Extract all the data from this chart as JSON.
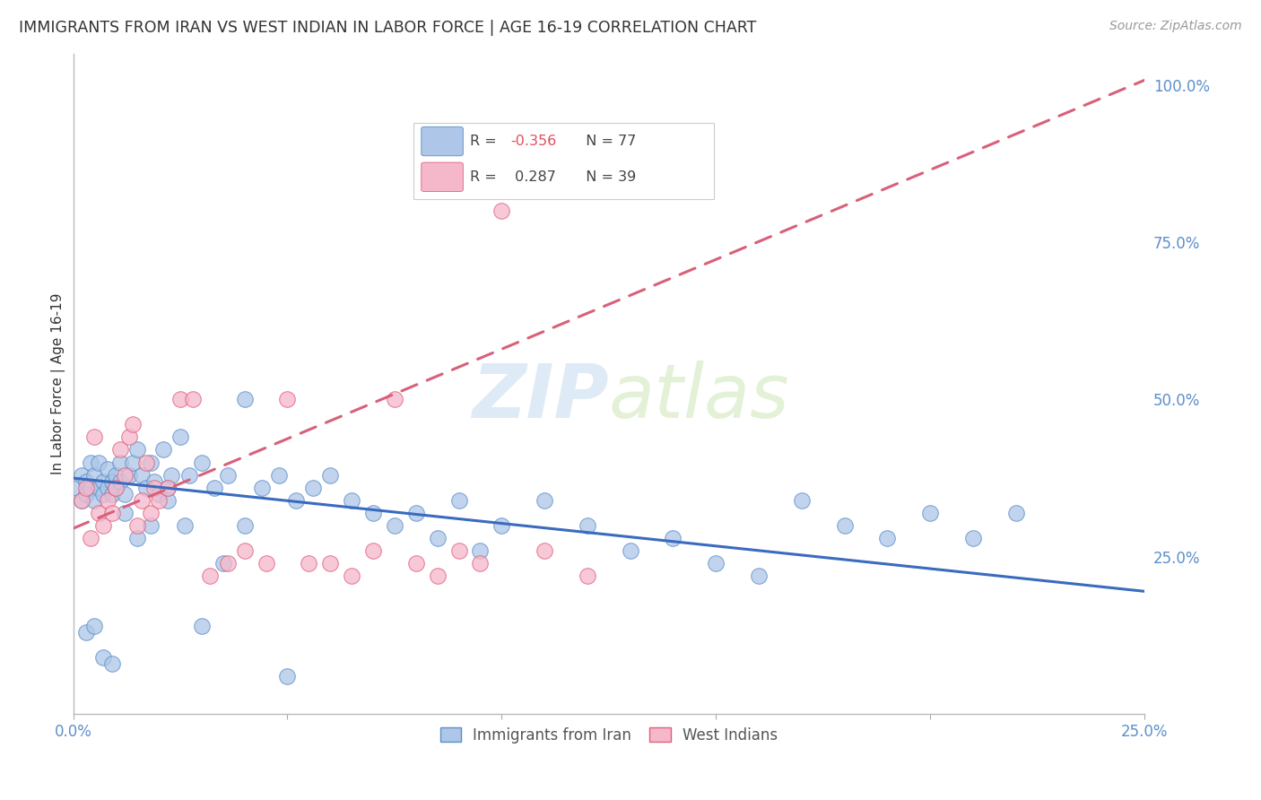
{
  "title": "IMMIGRANTS FROM IRAN VS WEST INDIAN IN LABOR FORCE | AGE 16-19 CORRELATION CHART",
  "source": "Source: ZipAtlas.com",
  "ylabel": "In Labor Force | Age 16-19",
  "xlim": [
    0.0,
    0.25
  ],
  "ylim": [
    0.0,
    1.05
  ],
  "xtick_positions": [
    0.0,
    0.05,
    0.1,
    0.15,
    0.2,
    0.25
  ],
  "xticklabels": [
    "0.0%",
    "",
    "",
    "",
    "",
    "25.0%"
  ],
  "yticks_right": [
    0.25,
    0.5,
    0.75,
    1.0
  ],
  "ytick_labels_right": [
    "25.0%",
    "50.0%",
    "75.0%",
    "100.0%"
  ],
  "iran_color": "#aec6e8",
  "iran_edge_color": "#5b8fc9",
  "westindian_color": "#f5b8cb",
  "westindian_edge_color": "#e0607a",
  "iran_line_color": "#3a6bbf",
  "westindian_line_color": "#d9607a",
  "background_color": "#ffffff",
  "grid_color": "#dce3ef",
  "watermark_color": "#c8dff0",
  "axis_label_color": "#5b8fc9",
  "text_color": "#333333",
  "source_color": "#999999",
  "title_fontsize": 12.5,
  "tick_fontsize": 12,
  "ylabel_fontsize": 11,
  "iran_line_intercept": 0.375,
  "iran_line_slope": -0.72,
  "west_line_intercept": 0.295,
  "west_line_slope": 2.85,
  "iran_x": [
    0.001,
    0.002,
    0.002,
    0.003,
    0.003,
    0.004,
    0.004,
    0.005,
    0.005,
    0.006,
    0.006,
    0.007,
    0.007,
    0.008,
    0.008,
    0.009,
    0.009,
    0.01,
    0.01,
    0.011,
    0.011,
    0.012,
    0.013,
    0.014,
    0.015,
    0.016,
    0.017,
    0.018,
    0.019,
    0.02,
    0.021,
    0.022,
    0.023,
    0.025,
    0.027,
    0.03,
    0.033,
    0.036,
    0.04,
    0.044,
    0.048,
    0.052,
    0.056,
    0.06,
    0.065,
    0.07,
    0.075,
    0.08,
    0.085,
    0.09,
    0.095,
    0.1,
    0.11,
    0.12,
    0.13,
    0.14,
    0.15,
    0.16,
    0.17,
    0.18,
    0.19,
    0.2,
    0.21,
    0.22,
    0.003,
    0.005,
    0.007,
    0.009,
    0.012,
    0.015,
    0.018,
    0.022,
    0.026,
    0.03,
    0.035,
    0.04,
    0.05
  ],
  "iran_y": [
    0.36,
    0.38,
    0.34,
    0.37,
    0.35,
    0.4,
    0.36,
    0.38,
    0.34,
    0.36,
    0.4,
    0.37,
    0.35,
    0.39,
    0.36,
    0.37,
    0.35,
    0.38,
    0.36,
    0.4,
    0.37,
    0.35,
    0.38,
    0.4,
    0.42,
    0.38,
    0.36,
    0.4,
    0.37,
    0.35,
    0.42,
    0.36,
    0.38,
    0.44,
    0.38,
    0.4,
    0.36,
    0.38,
    0.5,
    0.36,
    0.38,
    0.34,
    0.36,
    0.38,
    0.34,
    0.32,
    0.3,
    0.32,
    0.28,
    0.34,
    0.26,
    0.3,
    0.34,
    0.3,
    0.26,
    0.28,
    0.24,
    0.22,
    0.34,
    0.3,
    0.28,
    0.32,
    0.28,
    0.32,
    0.13,
    0.14,
    0.09,
    0.08,
    0.32,
    0.28,
    0.3,
    0.34,
    0.3,
    0.14,
    0.24,
    0.3,
    0.06
  ],
  "westindian_x": [
    0.002,
    0.003,
    0.004,
    0.005,
    0.006,
    0.007,
    0.008,
    0.009,
    0.01,
    0.011,
    0.012,
    0.013,
    0.014,
    0.015,
    0.016,
    0.017,
    0.018,
    0.019,
    0.02,
    0.022,
    0.025,
    0.028,
    0.032,
    0.036,
    0.04,
    0.045,
    0.05,
    0.055,
    0.06,
    0.065,
    0.07,
    0.075,
    0.08,
    0.085,
    0.09,
    0.095,
    0.1,
    0.11,
    0.12
  ],
  "westindian_y": [
    0.34,
    0.36,
    0.28,
    0.44,
    0.32,
    0.3,
    0.34,
    0.32,
    0.36,
    0.42,
    0.38,
    0.44,
    0.46,
    0.3,
    0.34,
    0.4,
    0.32,
    0.36,
    0.34,
    0.36,
    0.5,
    0.5,
    0.22,
    0.24,
    0.26,
    0.24,
    0.5,
    0.24,
    0.24,
    0.22,
    0.26,
    0.5,
    0.24,
    0.22,
    0.26,
    0.24,
    0.8,
    0.26,
    0.22
  ]
}
